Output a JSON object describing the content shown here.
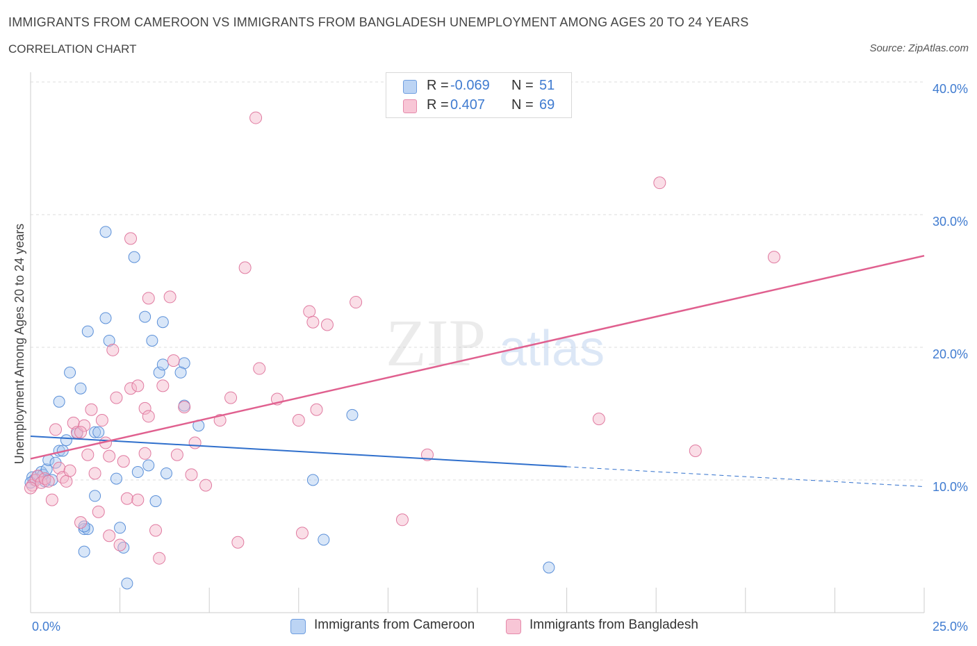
{
  "header": {
    "title": "IMMIGRANTS FROM CAMEROON VS IMMIGRANTS FROM BANGLADESH UNEMPLOYMENT AMONG AGES 20 TO 24 YEARS",
    "subtitle": "CORRELATION CHART",
    "source": "Source: ZipAtlas.com"
  },
  "legend": {
    "rows": [
      {
        "r_label": "R =",
        "r_value": "-0.069",
        "n_label": "N =",
        "n_value": "51"
      },
      {
        "r_label": "R =",
        "r_value": "0.407",
        "n_label": "N =",
        "n_value": "69"
      }
    ]
  },
  "bottom_legend": {
    "series_a": "Immigrants from Cameroon",
    "series_b": "Immigrants from Bangladesh"
  },
  "watermark": {
    "zip": "ZIP",
    "atlas": "atlas"
  },
  "colors": {
    "cameroon_fill": "#a9c8f0",
    "cameroon_stroke": "#5a8fd8",
    "cameroon_line": "#2f6fcc",
    "bangladesh_fill": "#f5b6c9",
    "bangladesh_stroke": "#e07aa0",
    "bangladesh_line": "#e0608f",
    "axis_text": "#3f7bd0",
    "grid": "#dddddd"
  },
  "chart_data": {
    "type": "scatter",
    "title": "IMMIGRANTS FROM CAMEROON VS IMMIGRANTS FROM BANGLADESH UNEMPLOYMENT AMONG AGES 20 TO 24 YEARS",
    "xlabel": "",
    "ylabel": "Unemployment Among Ages 20 to 24 years",
    "xlim": [
      0,
      25
    ],
    "ylim": [
      0,
      40
    ],
    "x_tick_labels": [
      "0.0%",
      "25.0%"
    ],
    "y_ticks": [
      10,
      20,
      30,
      40
    ],
    "y_tick_labels": [
      "10.0%",
      "20.0%",
      "30.0%",
      "40.0%"
    ],
    "series": [
      {
        "name": "Immigrants from Cameroon",
        "r": -0.069,
        "n": 51,
        "trend": {
          "x0": 0,
          "y0": 13.3,
          "x1": 15,
          "y1": 11.0,
          "dash_x1": 25,
          "dash_y1": 9.5
        },
        "points": [
          [
            0.05,
            10.2
          ],
          [
            0.1,
            10.0
          ],
          [
            0.2,
            10.3
          ],
          [
            0.3,
            10.6
          ],
          [
            0.35,
            10.4
          ],
          [
            0.4,
            9.9
          ],
          [
            0.45,
            10.8
          ],
          [
            0.5,
            11.5
          ],
          [
            0.6,
            10.0
          ],
          [
            0.7,
            11.3
          ],
          [
            0.8,
            12.2
          ],
          [
            0.9,
            12.2
          ],
          [
            1.0,
            13.0
          ],
          [
            1.1,
            18.1
          ],
          [
            1.3,
            13.5
          ],
          [
            1.4,
            16.9
          ],
          [
            0.8,
            15.9
          ],
          [
            1.6,
            21.2
          ],
          [
            1.8,
            13.6
          ],
          [
            1.5,
            6.3
          ],
          [
            1.6,
            6.3
          ],
          [
            1.5,
            6.5
          ],
          [
            1.5,
            4.6
          ],
          [
            1.8,
            8.8
          ],
          [
            1.9,
            13.6
          ],
          [
            2.1,
            28.7
          ],
          [
            2.1,
            22.2
          ],
          [
            2.2,
            20.5
          ],
          [
            2.4,
            10.1
          ],
          [
            2.5,
            6.4
          ],
          [
            2.6,
            4.9
          ],
          [
            2.7,
            2.2
          ],
          [
            2.9,
            26.8
          ],
          [
            3.0,
            10.6
          ],
          [
            3.2,
            22.3
          ],
          [
            3.3,
            11.1
          ],
          [
            3.4,
            20.5
          ],
          [
            3.5,
            8.4
          ],
          [
            3.6,
            18.1
          ],
          [
            3.7,
            21.9
          ],
          [
            3.8,
            10.5
          ],
          [
            3.7,
            18.7
          ],
          [
            4.3,
            18.8
          ],
          [
            4.2,
            18.1
          ],
          [
            4.3,
            15.6
          ],
          [
            4.7,
            14.1
          ],
          [
            7.9,
            10.0
          ],
          [
            8.2,
            5.5
          ],
          [
            9.0,
            14.9
          ],
          [
            14.5,
            3.4
          ],
          [
            0.0,
            9.8
          ]
        ]
      },
      {
        "name": "Immigrants from Bangladesh",
        "r": 0.407,
        "n": 69,
        "trend": {
          "x0": 0,
          "y0": 11.6,
          "x1": 25,
          "y1": 26.9
        },
        "points": [
          [
            0.05,
            9.6
          ],
          [
            0.15,
            10.0
          ],
          [
            0.2,
            10.3
          ],
          [
            0.3,
            9.8
          ],
          [
            0.4,
            10.1
          ],
          [
            0.5,
            9.9
          ],
          [
            0.6,
            8.5
          ],
          [
            0.7,
            13.8
          ],
          [
            0.8,
            10.9
          ],
          [
            0.9,
            10.2
          ],
          [
            1.0,
            9.9
          ],
          [
            1.1,
            10.7
          ],
          [
            1.2,
            14.3
          ],
          [
            1.3,
            13.6
          ],
          [
            1.4,
            6.8
          ],
          [
            1.5,
            14.1
          ],
          [
            1.6,
            11.9
          ],
          [
            1.7,
            15.3
          ],
          [
            1.8,
            10.5
          ],
          [
            1.9,
            7.6
          ],
          [
            2.0,
            14.5
          ],
          [
            2.1,
            12.8
          ],
          [
            2.2,
            5.8
          ],
          [
            2.3,
            19.8
          ],
          [
            2.4,
            16.2
          ],
          [
            2.5,
            5.1
          ],
          [
            2.6,
            11.4
          ],
          [
            2.7,
            8.6
          ],
          [
            2.8,
            16.9
          ],
          [
            2.8,
            28.2
          ],
          [
            3.0,
            17.1
          ],
          [
            3.0,
            8.5
          ],
          [
            3.2,
            15.4
          ],
          [
            3.2,
            12.0
          ],
          [
            3.3,
            14.8
          ],
          [
            3.3,
            23.7
          ],
          [
            3.5,
            6.2
          ],
          [
            3.6,
            4.1
          ],
          [
            3.7,
            17.1
          ],
          [
            3.9,
            23.8
          ],
          [
            4.0,
            19.0
          ],
          [
            4.1,
            11.9
          ],
          [
            4.3,
            15.5
          ],
          [
            4.5,
            10.4
          ],
          [
            4.6,
            12.8
          ],
          [
            4.9,
            9.6
          ],
          [
            5.3,
            14.5
          ],
          [
            5.6,
            16.2
          ],
          [
            5.8,
            5.3
          ],
          [
            6.0,
            26.0
          ],
          [
            6.3,
            37.3
          ],
          [
            6.4,
            18.4
          ],
          [
            6.9,
            16.1
          ],
          [
            7.5,
            14.5
          ],
          [
            7.6,
            6.0
          ],
          [
            7.8,
            22.7
          ],
          [
            7.9,
            21.9
          ],
          [
            8.0,
            15.3
          ],
          [
            8.3,
            21.7
          ],
          [
            9.1,
            23.4
          ],
          [
            10.4,
            7.0
          ],
          [
            11.1,
            11.9
          ],
          [
            15.9,
            14.6
          ],
          [
            17.6,
            32.4
          ],
          [
            18.6,
            12.2
          ],
          [
            20.8,
            26.8
          ],
          [
            0.0,
            9.4
          ],
          [
            1.4,
            13.6
          ],
          [
            2.2,
            11.8
          ]
        ]
      }
    ]
  }
}
